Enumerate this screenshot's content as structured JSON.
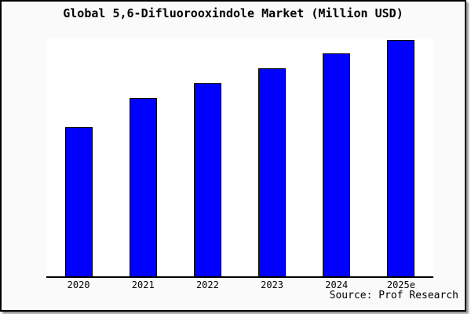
{
  "window": {
    "background_color": "#fafafa",
    "frame_border_color": "#000000",
    "plot_background_color": "#ffffff"
  },
  "chart": {
    "title": "Global 5,6-Difluorooxindole Market (Million USD)",
    "source": "Source: Prof Research"
  },
  "chart_data": {
    "type": "bar",
    "title": "Global 5,6-Difluorooxindole Market (Million USD)",
    "categories": [
      "2020",
      "2021",
      "2022",
      "2023",
      "2024",
      "2025e"
    ],
    "values": [
      190,
      227,
      246,
      265,
      284,
      301
    ],
    "values_note": "no y-axis scale shown in image; values are relative bar heights read in pixels",
    "bar_color": "#0000ff",
    "bar_edge_color": "#000000",
    "xlabel": "",
    "ylabel": "",
    "grid": false,
    "legend": false,
    "plot_bg": "#ffffff",
    "outer_bg": "#fafafa",
    "annotations": [
      "Source: Prof Research"
    ]
  }
}
